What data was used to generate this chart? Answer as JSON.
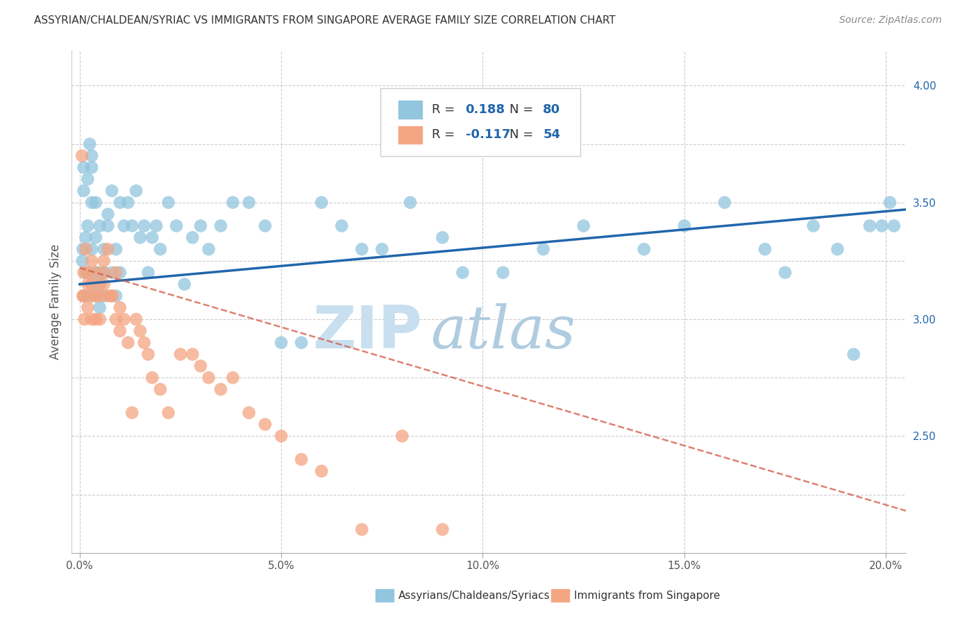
{
  "title": "ASSYRIAN/CHALDEAN/SYRIAC VS IMMIGRANTS FROM SINGAPORE AVERAGE FAMILY SIZE CORRELATION CHART",
  "source": "Source: ZipAtlas.com",
  "ylabel": "Average Family Size",
  "xlabel_ticks": [
    "0.0%",
    "5.0%",
    "10.0%",
    "15.0%",
    "20.0%"
  ],
  "xlabel_vals": [
    0.0,
    0.05,
    0.1,
    0.15,
    0.2
  ],
  "ylabel_ticks_right": [
    2.5,
    3.0,
    3.5,
    4.0
  ],
  "ylim": [
    2.0,
    4.15
  ],
  "xlim": [
    -0.002,
    0.205
  ],
  "legend1_R": "0.188",
  "legend1_N": "80",
  "legend2_R": "-0.117",
  "legend2_N": "54",
  "legend1_label": "Assyrians/Chaldeans/Syriacs",
  "legend2_label": "Immigrants from Singapore",
  "color_blue": "#92c5de",
  "color_blue_line": "#2166ac",
  "color_pink": "#f4a582",
  "color_pink_line": "#d6604d",
  "watermark_zip": "#c8dff0",
  "watermark_atlas": "#b0cce0",
  "blue_line_x0": 0.0,
  "blue_line_x1": 0.205,
  "blue_line_y0": 3.15,
  "blue_line_y1": 3.47,
  "pink_line_x0": 0.0,
  "pink_line_x1": 0.205,
  "pink_line_y0": 3.22,
  "pink_line_y1": 2.18,
  "blue_x": [
    0.0007,
    0.0008,
    0.001,
    0.001,
    0.001,
    0.0015,
    0.0015,
    0.002,
    0.002,
    0.002,
    0.002,
    0.0025,
    0.003,
    0.003,
    0.003,
    0.003,
    0.003,
    0.004,
    0.004,
    0.004,
    0.004,
    0.005,
    0.005,
    0.005,
    0.005,
    0.006,
    0.006,
    0.006,
    0.007,
    0.007,
    0.008,
    0.008,
    0.009,
    0.009,
    0.01,
    0.01,
    0.011,
    0.012,
    0.013,
    0.014,
    0.015,
    0.016,
    0.017,
    0.018,
    0.019,
    0.02,
    0.022,
    0.024,
    0.026,
    0.028,
    0.03,
    0.032,
    0.035,
    0.038,
    0.042,
    0.046,
    0.05,
    0.055,
    0.06,
    0.065,
    0.07,
    0.075,
    0.082,
    0.09,
    0.095,
    0.105,
    0.115,
    0.125,
    0.14,
    0.15,
    0.16,
    0.17,
    0.175,
    0.182,
    0.188,
    0.192,
    0.196,
    0.199,
    0.201,
    0.202
  ],
  "blue_y": [
    3.25,
    3.3,
    3.55,
    3.65,
    3.1,
    3.2,
    3.35,
    3.2,
    3.1,
    3.4,
    3.6,
    3.75,
    3.3,
    3.15,
    3.65,
    3.7,
    3.5,
    3.35,
    3.2,
    3.1,
    3.5,
    3.2,
    3.15,
    3.05,
    3.4,
    3.3,
    3.1,
    3.2,
    3.4,
    3.45,
    3.2,
    3.55,
    3.3,
    3.1,
    3.5,
    3.2,
    3.4,
    3.5,
    3.4,
    3.55,
    3.35,
    3.4,
    3.2,
    3.35,
    3.4,
    3.3,
    3.5,
    3.4,
    3.15,
    3.35,
    3.4,
    3.3,
    3.4,
    3.5,
    3.5,
    3.4,
    2.9,
    2.9,
    3.5,
    3.4,
    3.3,
    3.3,
    3.5,
    3.35,
    3.2,
    3.2,
    3.3,
    3.4,
    3.3,
    3.4,
    3.5,
    3.3,
    3.2,
    3.4,
    3.3,
    2.85,
    3.4,
    3.4,
    3.5,
    3.4
  ],
  "pink_x": [
    0.0006,
    0.0008,
    0.001,
    0.001,
    0.0012,
    0.0015,
    0.002,
    0.002,
    0.002,
    0.003,
    0.003,
    0.003,
    0.003,
    0.004,
    0.004,
    0.004,
    0.005,
    0.005,
    0.005,
    0.006,
    0.006,
    0.006,
    0.007,
    0.007,
    0.008,
    0.008,
    0.009,
    0.009,
    0.01,
    0.01,
    0.011,
    0.012,
    0.013,
    0.014,
    0.015,
    0.016,
    0.017,
    0.018,
    0.02,
    0.022,
    0.025,
    0.028,
    0.03,
    0.032,
    0.035,
    0.038,
    0.042,
    0.046,
    0.05,
    0.055,
    0.06,
    0.07,
    0.08,
    0.09
  ],
  "pink_y": [
    3.7,
    3.1,
    3.2,
    3.1,
    3.0,
    3.3,
    3.2,
    3.15,
    3.05,
    3.25,
    3.15,
    3.1,
    3.0,
    3.2,
    3.1,
    3.0,
    3.15,
    3.1,
    3.0,
    3.25,
    3.15,
    3.2,
    3.1,
    3.3,
    3.1,
    3.1,
    3.0,
    3.2,
    2.95,
    3.05,
    3.0,
    2.9,
    2.6,
    3.0,
    2.95,
    2.9,
    2.85,
    2.75,
    2.7,
    2.6,
    2.85,
    2.85,
    2.8,
    2.75,
    2.7,
    2.75,
    2.6,
    2.55,
    2.5,
    2.4,
    2.35,
    2.1,
    2.5,
    2.1
  ]
}
